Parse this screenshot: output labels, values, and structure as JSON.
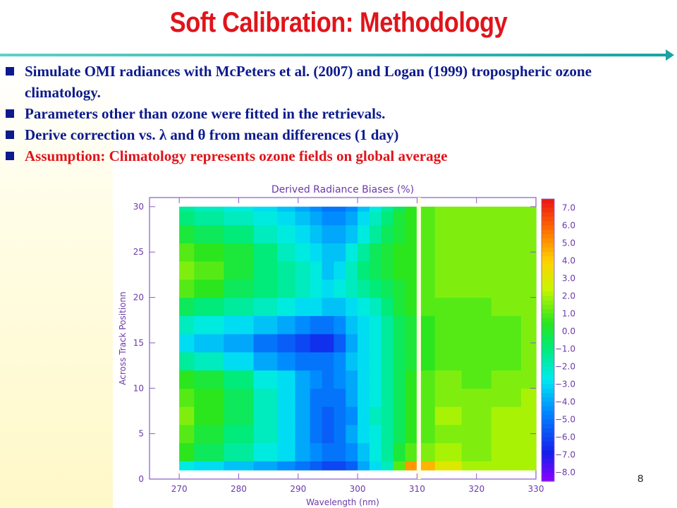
{
  "slide": {
    "title": "Soft Calibration: Methodology",
    "page_number": "8",
    "bullets": [
      {
        "text": "Simulate OMI radiances with McPeters et al. (2007) and Logan (1999) tropospheric ozone climatology.",
        "color": "#0c1a8c"
      },
      {
        "text": "Parameters other than ozone were fitted in the retrievals.",
        "color": "#0c1a8c"
      },
      {
        "text": "Derive correction vs. λ and θ from mean differences (1 day)",
        "color": "#0c1a8c"
      },
      {
        "text": "Assumption: Climatology represents ozone fields on global average",
        "color": "#e0141a"
      }
    ]
  },
  "chart_data": {
    "type": "heatmap",
    "title": "Derived Radiance Biases (%)",
    "xlabel": "Wavelength (nm)",
    "ylabel": "Across Track Positionn",
    "xlim": [
      265,
      330
    ],
    "ylim": [
      0,
      31
    ],
    "xticks": [
      270,
      280,
      290,
      300,
      310,
      320,
      330
    ],
    "yticks": [
      0,
      5,
      10,
      15,
      20,
      25,
      30
    ],
    "colorbar": {
      "range": [
        -8.5,
        7.5
      ],
      "ticks": [
        "7.0",
        "6.0",
        "5.0",
        "4.0",
        "3.0",
        "2.0",
        "1.0",
        "0.0",
        "−1.0",
        "−2.0",
        "−3.0",
        "−4.0",
        "−5.0",
        "−6.0",
        "−7.0",
        "−8.0"
      ]
    },
    "x": [
      270,
      275,
      280,
      285,
      288,
      291,
      293,
      295,
      297,
      299,
      301,
      303,
      305,
      307,
      309,
      311,
      315,
      320,
      325,
      330
    ],
    "y": [
      1,
      3,
      5,
      7,
      9,
      11,
      13,
      15,
      17,
      19,
      21,
      23,
      25,
      27,
      29,
      30
    ],
    "z": [
      [
        -2.5,
        -3.0,
        -3.5,
        -4.0,
        -4.5,
        -5.0,
        -5.5,
        -6.0,
        -6.0,
        -5.5,
        -4.0,
        -3.0,
        -2.0,
        1.0,
        5.0,
        4.5,
        3.0,
        2.0,
        2.0,
        2.0
      ],
      [
        0.5,
        -0.5,
        -1.5,
        -2.5,
        -3.0,
        -4.0,
        -4.5,
        -5.0,
        -5.0,
        -4.5,
        -3.5,
        -2.5,
        -1.5,
        0.0,
        1.0,
        1.5,
        2.0,
        1.5,
        2.0,
        2.0
      ],
      [
        1.0,
        0.0,
        -1.0,
        -2.0,
        -3.0,
        -4.0,
        -5.0,
        -5.5,
        -5.0,
        -4.0,
        -3.0,
        -2.5,
        -1.5,
        -0.5,
        0.5,
        1.0,
        1.5,
        1.5,
        2.0,
        2.0
      ],
      [
        1.5,
        0.5,
        -0.5,
        -2.0,
        -3.0,
        -4.0,
        -5.0,
        -5.5,
        -5.0,
        -4.5,
        -3.0,
        -2.0,
        -1.5,
        -0.5,
        0.5,
        1.0,
        2.0,
        1.5,
        2.0,
        2.0
      ],
      [
        1.0,
        0.5,
        -0.5,
        -2.0,
        -3.0,
        -4.0,
        -5.0,
        -5.0,
        -5.0,
        -4.0,
        -3.0,
        -2.5,
        -1.5,
        -0.5,
        0.5,
        1.0,
        1.5,
        1.5,
        1.5,
        2.0
      ],
      [
        0.5,
        0.0,
        -1.0,
        -2.5,
        -3.0,
        -4.0,
        -4.5,
        -5.0,
        -4.5,
        -4.0,
        -3.0,
        -2.5,
        -1.5,
        -0.5,
        0.5,
        1.0,
        1.5,
        1.0,
        1.5,
        1.5
      ],
      [
        -1.5,
        -2.0,
        -3.0,
        -4.0,
        -4.5,
        -5.0,
        -5.0,
        -5.0,
        -4.5,
        -3.5,
        -3.0,
        -2.5,
        -1.5,
        -0.5,
        0.0,
        0.5,
        1.0,
        1.0,
        1.0,
        1.5
      ],
      [
        -3.0,
        -3.5,
        -4.0,
        -5.0,
        -5.5,
        -6.0,
        -6.5,
        -6.5,
        -5.5,
        -4.0,
        -3.0,
        -2.5,
        -1.5,
        -0.5,
        0.0,
        0.5,
        1.0,
        1.0,
        1.0,
        1.5
      ],
      [
        -2.0,
        -2.5,
        -3.0,
        -3.5,
        -4.0,
        -4.5,
        -5.0,
        -5.0,
        -4.5,
        -3.5,
        -3.0,
        -2.5,
        -1.5,
        -0.5,
        0.0,
        0.5,
        1.0,
        1.0,
        1.0,
        1.5
      ],
      [
        -0.5,
        -1.0,
        -1.5,
        -2.0,
        -2.5,
        -3.0,
        -3.0,
        -3.5,
        -3.5,
        -3.0,
        -2.5,
        -2.0,
        -1.0,
        0.0,
        0.5,
        1.0,
        1.0,
        1.0,
        1.5,
        1.5
      ],
      [
        1.0,
        0.5,
        -0.5,
        -1.0,
        -1.5,
        -2.0,
        -2.5,
        -3.0,
        -2.5,
        -2.0,
        -1.5,
        -1.0,
        -0.5,
        0.0,
        0.5,
        1.0,
        1.5,
        1.5,
        1.5,
        1.5
      ],
      [
        1.5,
        1.0,
        0.0,
        -1.0,
        -1.5,
        -2.0,
        -2.5,
        -3.5,
        -3.0,
        -2.0,
        -1.0,
        -0.5,
        0.0,
        0.5,
        0.5,
        1.0,
        1.5,
        1.5,
        1.5,
        1.5
      ],
      [
        1.0,
        0.5,
        0.0,
        -1.0,
        -2.0,
        -2.5,
        -3.0,
        -3.5,
        -3.5,
        -2.5,
        -1.5,
        -0.5,
        0.0,
        0.5,
        0.5,
        1.0,
        1.5,
        1.5,
        1.5,
        1.5
      ],
      [
        0.0,
        -0.5,
        -1.0,
        -2.0,
        -2.5,
        -3.0,
        -3.5,
        -4.0,
        -4.0,
        -3.5,
        -2.5,
        -1.5,
        -0.5,
        0.0,
        0.5,
        1.0,
        1.5,
        1.5,
        1.5,
        1.5
      ],
      [
        -1.0,
        -1.5,
        -2.0,
        -2.5,
        -3.0,
        -3.5,
        -4.0,
        -4.5,
        -4.5,
        -4.0,
        -3.0,
        -2.0,
        -1.0,
        0.0,
        0.5,
        1.0,
        1.5,
        1.5,
        1.5,
        1.5
      ],
      [
        -1.5,
        -2.0,
        -2.5,
        -3.0,
        -3.5,
        -4.0,
        -4.5,
        -5.0,
        -5.0,
        -4.5,
        -3.5,
        -2.5,
        -1.5,
        -0.5,
        0.5,
        1.0,
        1.5,
        1.5,
        1.5,
        1.5
      ]
    ],
    "masked_band_x": 310.3
  }
}
